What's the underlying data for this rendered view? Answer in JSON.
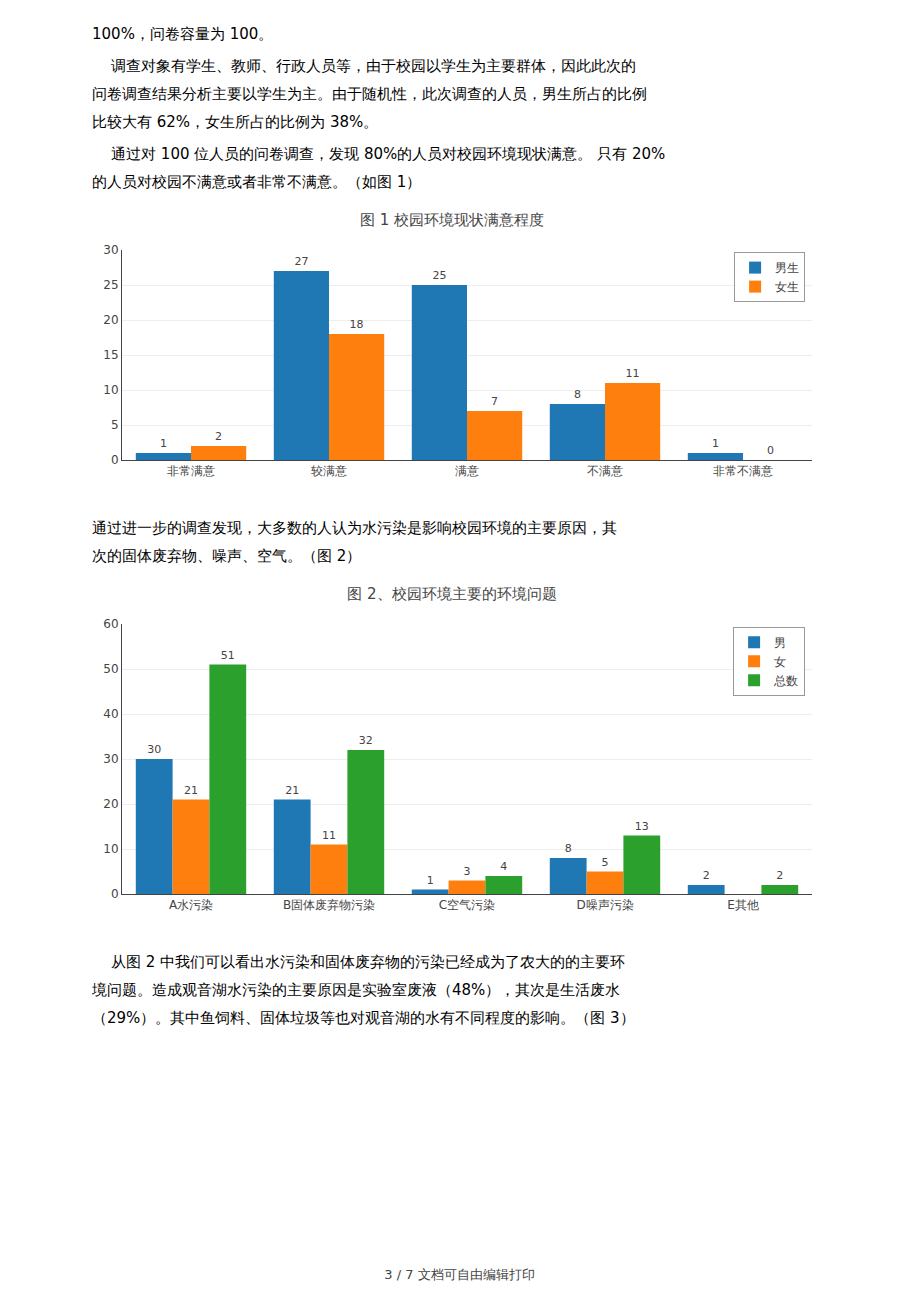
{
  "paragraphs": [
    [
      "100%，问卷容量为 100。"
    ],
    [
      "    调查对象有学生、教师、行政人员等，由于校园以学生为主要群体，因此此次的",
      "问卷调查结果分析主要以学生为主。由于随机性，此次调查的人员，男生所占的比例",
      "比较大有 62%，女生所占的比例为 38%。"
    ],
    [
      "    通过对 100 位人员的问卷调查，发现 80%的人员对校园环境现状满意。 只有 20%",
      "的人员对校园不满意或者非常不满意。（如图 1）"
    ],
    [
      "通过进一步的调查发现，大多数的人认为水污染是影响校园环境的主要原因，其",
      "次的固体废弃物、噪声、空气。（图 2）"
    ],
    [
      "    从图 2 中我们可以看出水污染和固体废弃物的污染已经成为了农大的的主要环",
      "境问题。造成观音湖水污染的主要原因是实验室废液（48%），其次是生活废水",
      "（29%）。其中鱼饲料、固体垃圾等也对观音湖的水有不同程度的影响。（图 3）"
    ]
  ],
  "footer": "3 / 7 文档可自由编辑打印",
  "chart_data": [
    {
      "type": "bar",
      "title": "图 1 校园环境现状满意程度",
      "categories": [
        "非常满意",
        "较满意",
        "满意",
        "不满意",
        "非常不满意"
      ],
      "series": [
        {
          "name": "男生",
          "values": [
            1,
            27,
            25,
            8,
            1
          ]
        },
        {
          "name": "女生",
          "values": [
            2,
            18,
            7,
            11,
            0
          ]
        }
      ],
      "ylim": [
        0,
        30
      ],
      "yticks": [
        0,
        5,
        10,
        15,
        20,
        25,
        30
      ],
      "grid": true,
      "legend": "upper right",
      "data_labels": true
    },
    {
      "type": "bar",
      "title": "图 2、校园环境主要的环境问题",
      "categories": [
        "A水污染",
        "B固体废弃物污染",
        "C空气污染",
        "D噪声污染",
        "E其他"
      ],
      "series": [
        {
          "name": "男",
          "values": [
            30,
            21,
            1,
            8,
            2
          ]
        },
        {
          "name": "女",
          "values": [
            21,
            11,
            3,
            5,
            0
          ],
          "value_labels": [
            "21",
            "11",
            "3",
            "5",
            null
          ]
        },
        {
          "name": "总数",
          "values": [
            51,
            32,
            4,
            13,
            2
          ]
        }
      ],
      "ylim": [
        0,
        60
      ],
      "yticks": [
        0,
        10,
        20,
        30,
        40,
        50,
        60
      ],
      "grid": true,
      "legend": "upper right",
      "data_labels": true
    }
  ]
}
